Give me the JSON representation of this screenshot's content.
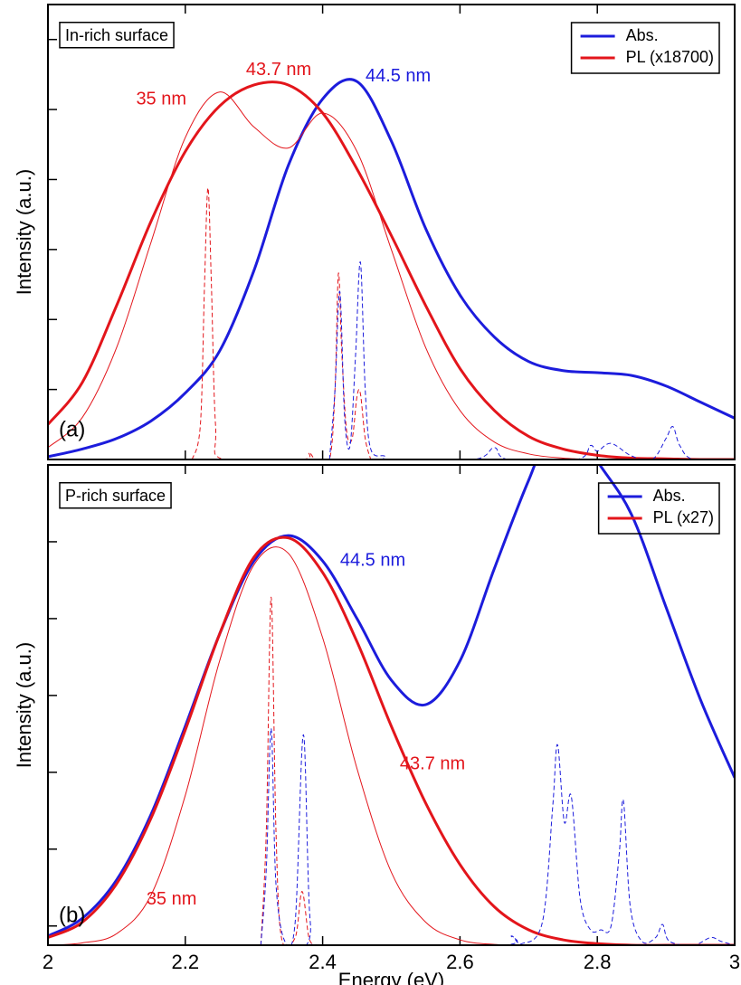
{
  "chart_data": [
    {
      "type": "line",
      "title": "In-rich surface",
      "panel_label": "(a)",
      "ylabel": "Intensity (a.u.)",
      "xlim": [
        2,
        3
      ],
      "xticks": [
        2,
        2.2,
        2.4,
        2.6,
        2.8,
        3
      ],
      "xtick_labels": false,
      "ylim": [
        0,
        6.5
      ],
      "yticks": [
        1,
        2,
        3,
        4,
        5,
        6
      ],
      "legend": "upper right",
      "series": [
        {
          "name": "Abs.",
          "color": "#1c1cdc",
          "linewidth": 3,
          "dash": false,
          "x": [
            2.0,
            2.05,
            2.1,
            2.15,
            2.2,
            2.25,
            2.3,
            2.35,
            2.4,
            2.45,
            2.5,
            2.55,
            2.6,
            2.65,
            2.7,
            2.75,
            2.8,
            2.85,
            2.9,
            2.95,
            3.0
          ],
          "values": [
            0.04,
            0.15,
            0.3,
            0.55,
            0.95,
            1.55,
            2.7,
            4.2,
            5.15,
            5.4,
            4.55,
            3.3,
            2.35,
            1.75,
            1.4,
            1.27,
            1.24,
            1.2,
            1.05,
            0.82,
            0.59
          ]
        },
        {
          "name": "PL (x18700)",
          "color": "#e3151b",
          "linewidth": 3,
          "dash": false,
          "x": [
            2.0,
            2.05,
            2.1,
            2.15,
            2.2,
            2.25,
            2.3,
            2.35,
            2.4,
            2.45,
            2.5,
            2.55,
            2.6,
            2.65,
            2.7,
            2.75,
            2.8,
            2.85,
            2.9,
            2.95,
            3.0
          ],
          "values": [
            0.5,
            1.1,
            2.2,
            3.4,
            4.4,
            5.05,
            5.35,
            5.35,
            4.95,
            4.15,
            3.2,
            2.2,
            1.3,
            0.7,
            0.33,
            0.15,
            0.06,
            0.02,
            0.01,
            0,
            0
          ]
        },
        {
          "color": "#e3151b",
          "linewidth": 1,
          "dash": false,
          "x": [
            2.0,
            2.05,
            2.1,
            2.15,
            2.2,
            2.25,
            2.3,
            2.35,
            2.4,
            2.45,
            2.5,
            2.55,
            2.6,
            2.65,
            2.7,
            2.75,
            2.8,
            2.85,
            2.9,
            2.95,
            3.0
          ],
          "values": [
            0.17,
            0.6,
            1.6,
            3.1,
            4.6,
            5.25,
            4.75,
            4.45,
            4.95,
            4.4,
            3.0,
            1.6,
            0.7,
            0.25,
            0.08,
            0.02,
            0,
            0,
            0,
            0,
            0
          ]
        },
        {
          "color": "#e3151b",
          "linewidth": 1,
          "dash": true,
          "x": [
            2.21,
            2.222,
            2.228,
            2.233,
            2.238,
            2.244,
            2.255,
            2.37,
            2.38,
            2.39,
            2.41,
            2.418,
            2.423,
            2.428,
            2.435,
            2.443,
            2.45,
            2.455,
            2.462,
            2.47
          ],
          "values": [
            0,
            0.5,
            2.5,
            3.88,
            2.5,
            0.5,
            0,
            0,
            0.1,
            0,
            0,
            1.0,
            2.66,
            1.5,
            0.4,
            0.3,
            0.9,
            0.94,
            0.3,
            0
          ]
        },
        {
          "color": "#1c1cdc",
          "linewidth": 1,
          "dash": true,
          "x": [
            2.41,
            2.418,
            2.425,
            2.432,
            2.44,
            2.448,
            2.455,
            2.462,
            2.47,
            2.49,
            2.5,
            2.62,
            2.65,
            2.67,
            2.77,
            2.79,
            2.8,
            2.82,
            2.85,
            2.88,
            2.9,
            2.91,
            2.92,
            2.94,
            3.0
          ],
          "values": [
            0,
            1.0,
            2.4,
            0.6,
            0.2,
            1.5,
            2.82,
            1.0,
            0.15,
            0.05,
            0,
            0,
            0.17,
            0,
            0,
            0.2,
            0.12,
            0.23,
            0.05,
            0,
            0.3,
            0.47,
            0.2,
            0,
            0
          ]
        }
      ],
      "annotations": [
        {
          "text": "35 nm",
          "x": 2.165,
          "y": 5.14,
          "color": "#e3151b"
        },
        {
          "text": "43.7 nm",
          "x": 2.336,
          "y": 5.56,
          "color": "#e3151b"
        },
        {
          "text": "44.5 nm",
          "x": 2.51,
          "y": 5.47,
          "color": "#1c1cdc"
        }
      ]
    },
    {
      "type": "line",
      "title": "P-rich surface",
      "panel_label": "(b)",
      "ylabel": "Intensity (a.u.)",
      "xlabel": "Energy (eV)",
      "xlim": [
        2,
        3
      ],
      "xticks": [
        2,
        2.2,
        2.4,
        2.6,
        2.8,
        3
      ],
      "xtick_labels": true,
      "ylim": [
        0,
        6.25
      ],
      "yticks": [
        0.25,
        1.25,
        2.25,
        3.25,
        4.25,
        5.25
      ],
      "legend": "upper right",
      "series": [
        {
          "name": "Abs.",
          "color": "#1c1cdc",
          "linewidth": 3,
          "dash": false,
          "x": [
            2.0,
            2.05,
            2.1,
            2.15,
            2.2,
            2.25,
            2.3,
            2.35,
            2.4,
            2.45,
            2.5,
            2.55,
            2.6,
            2.65,
            2.7,
            2.75,
            2.8,
            2.85,
            2.9,
            2.95,
            3.0
          ],
          "values": [
            0.12,
            0.35,
            0.85,
            1.7,
            2.85,
            4.05,
            5.0,
            5.33,
            5.0,
            4.25,
            3.45,
            3.13,
            3.7,
            4.9,
            6.05,
            7.0,
            6.3,
            5.6,
            4.4,
            3.2,
            2.18
          ]
        },
        {
          "name": "PL (x27)",
          "color": "#e3151b",
          "linewidth": 3,
          "dash": false,
          "x": [
            2.0,
            2.05,
            2.1,
            2.15,
            2.2,
            2.25,
            2.3,
            2.35,
            2.4,
            2.45,
            2.5,
            2.55,
            2.6,
            2.65,
            2.7,
            2.75,
            2.8,
            2.85,
            2.9,
            2.95,
            3.0
          ],
          "values": [
            0.1,
            0.3,
            0.8,
            1.65,
            2.8,
            4.05,
            5.05,
            5.3,
            4.85,
            3.95,
            2.85,
            1.85,
            1.05,
            0.5,
            0.2,
            0.07,
            0.02,
            0,
            0,
            0,
            0
          ]
        },
        {
          "color": "#e3151b",
          "linewidth": 1,
          "dash": false,
          "x": [
            2.0,
            2.05,
            2.1,
            2.15,
            2.2,
            2.25,
            2.3,
            2.35,
            2.4,
            2.45,
            2.5,
            2.55,
            2.6,
            2.65,
            2.7,
            2.75,
            2.8,
            2.85,
            2.9,
            2.95,
            3.0
          ],
          "values": [
            0,
            0.03,
            0.15,
            0.65,
            1.95,
            3.7,
            4.95,
            5.1,
            4.0,
            2.3,
            0.95,
            0.3,
            0.07,
            0.01,
            0,
            0,
            0,
            0,
            0,
            0,
            0
          ]
        },
        {
          "color": "#e3151b",
          "linewidth": 1,
          "dash": true,
          "x": [
            2.31,
            2.318,
            2.325,
            2.332,
            2.34,
            2.36,
            2.37,
            2.38,
            2.39
          ],
          "values": [
            0,
            1.5,
            4.53,
            1.5,
            0.1,
            0.1,
            0.7,
            0.1,
            0
          ]
        },
        {
          "color": "#1c1cdc",
          "linewidth": 1,
          "dash": true,
          "x": [
            2.31,
            2.318,
            2.325,
            2.332,
            2.345,
            2.36,
            2.372,
            2.382,
            2.4,
            2.66,
            2.675,
            2.69,
            2.72,
            2.735,
            2.742,
            2.752,
            2.762,
            2.775,
            2.79,
            2.805,
            2.82,
            2.832,
            2.838,
            2.848,
            2.865,
            2.885,
            2.895,
            2.905,
            2.94,
            2.965,
            2.98,
            3.0
          ],
          "values": [
            0,
            1.0,
            2.82,
            0.8,
            0.05,
            0.3,
            2.74,
            0.3,
            0,
            0,
            0.12,
            0.02,
            0.3,
            1.8,
            2.61,
            1.6,
            1.94,
            0.6,
            0.2,
            0.2,
            0.25,
            1.2,
            1.88,
            0.5,
            0.05,
            0.1,
            0.27,
            0.05,
            0,
            0.1,
            0.05,
            0
          ]
        }
      ],
      "annotations": [
        {
          "text": "44.5 nm",
          "x": 2.473,
          "y": 5.0,
          "color": "#1c1cdc"
        },
        {
          "text": "43.7 nm",
          "x": 2.56,
          "y": 2.35,
          "color": "#e3151b"
        },
        {
          "text": "35 nm",
          "x": 2.18,
          "y": 0.59,
          "color": "#e3151b"
        }
      ]
    }
  ]
}
